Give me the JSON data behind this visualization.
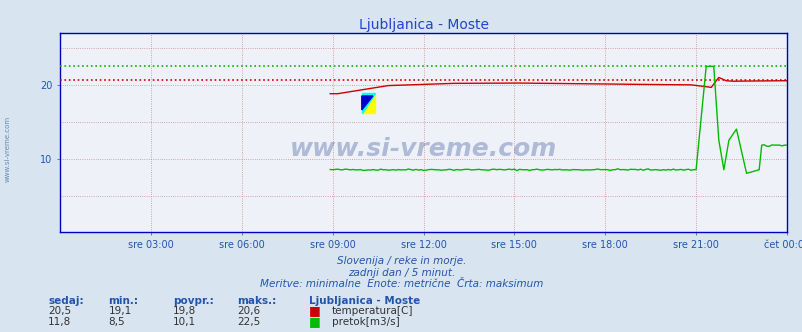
{
  "title": "Ljubljanica - Moste",
  "bg_color": "#d8e4f0",
  "plot_bg_color": "#eef2f8",
  "title_color": "#2244cc",
  "axis_label_color": "#2255aa",
  "text_color": "#2255aa",
  "xlim": [
    0,
    288
  ],
  "ylim": [
    0,
    27
  ],
  "ytick_vals": [
    10,
    20
  ],
  "xtick_labels": [
    "sre 03:00",
    "sre 06:00",
    "sre 09:00",
    "sre 12:00",
    "sre 15:00",
    "sre 18:00",
    "sre 21:00",
    "čet 00:00"
  ],
  "xtick_positions": [
    36,
    72,
    108,
    144,
    180,
    216,
    252,
    288
  ],
  "temp_color": "#cc0000",
  "flow_color": "#00bb00",
  "temp_max_line": 20.6,
  "flow_max_line": 22.5,
  "subtitle1": "Slovenija / reke in morje.",
  "subtitle2": "zadnji dan / 5 minut.",
  "subtitle3": "Meritve: minimalne  Enote: metrične  Črta: maksimum",
  "legend_title": "Ljubljanica - Moste",
  "legend_items": [
    {
      "label": "temperatura[C]",
      "color": "#cc0000"
    },
    {
      "label": "pretok[m3/s]",
      "color": "#00bb00"
    }
  ],
  "stats_headers": [
    "sedaj:",
    "min.:",
    "povpr.:",
    "maks.:"
  ],
  "stats_temp": [
    "20,5",
    "19,1",
    "19,8",
    "20,6"
  ],
  "stats_flow": [
    "11,8",
    "8,5",
    "10,1",
    "22,5"
  ],
  "watermark": "www.si-vreme.com",
  "watermark_color": "#1a3a8a",
  "side_label": "www.si-vreme.com"
}
